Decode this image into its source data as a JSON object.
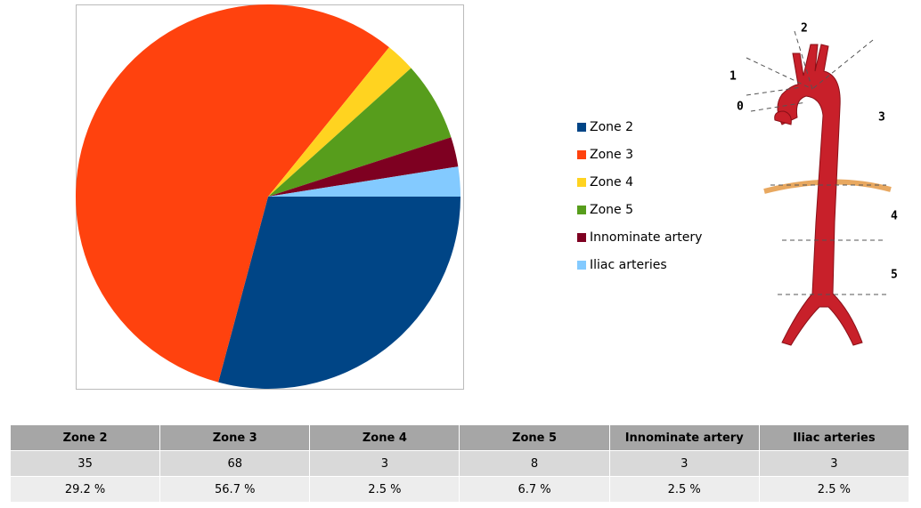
{
  "chart_data": {
    "type": "pie",
    "categories": [
      "Zone 2",
      "Zone 3",
      "Zone 4",
      "Zone 5",
      "Innominate artery",
      "Iliac arteries"
    ],
    "values": [
      35,
      68,
      3,
      8,
      3,
      3
    ],
    "colors": [
      "#004586",
      "#ff420e",
      "#ffd320",
      "#579d1c",
      "#7e0021",
      "#83caff"
    ],
    "percent_labels": [
      "29.2 %",
      "56.7 %",
      "2.5 %",
      "6.7 %",
      "2.5 %",
      "2.5 %"
    ]
  },
  "illustration": {
    "labels": [
      "0",
      "1",
      "2",
      "3",
      "4",
      "5"
    ]
  }
}
